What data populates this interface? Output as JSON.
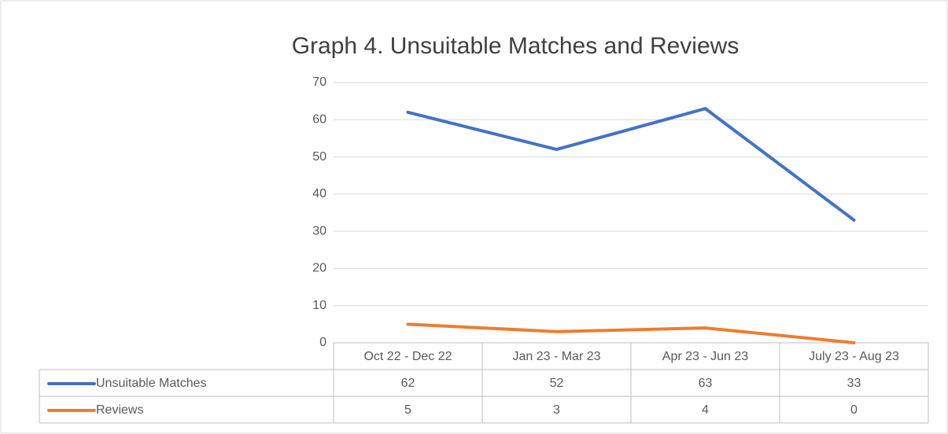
{
  "chart_data": {
    "type": "line",
    "title": "Graph 4. Unsuitable Matches and Reviews",
    "categories": [
      "Oct 22 - Dec 22",
      "Jan 23 - Mar 23",
      "Apr 23 - Jun 23",
      "July 23 - Aug 23"
    ],
    "series": [
      {
        "name": "Unsuitable Matches",
        "color": "#4472c4",
        "values": [
          62,
          52,
          63,
          33
        ]
      },
      {
        "name": "Reviews",
        "color": "#ed7d31",
        "values": [
          5,
          3,
          4,
          0
        ]
      }
    ],
    "ylim": [
      0,
      70
    ],
    "yticks": [
      0,
      10,
      20,
      30,
      40,
      50,
      60,
      70
    ],
    "grid": true,
    "data_table": true
  }
}
